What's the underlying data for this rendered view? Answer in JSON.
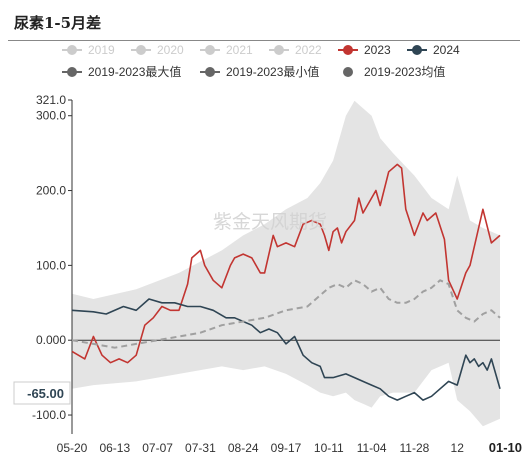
{
  "title": "尿素1-5月差",
  "watermark": "紫金天风期货",
  "cursor_label": "-65.00",
  "chart_data": {
    "type": "line",
    "x_categories": [
      "05-20",
      "06-13",
      "07-07",
      "07-31",
      "08-24",
      "09-17",
      "10-11",
      "11-04",
      "11-28",
      "12",
      "01-10"
    ],
    "ylim": [
      -120,
      321
    ],
    "y_ticks": [
      {
        "value": 321,
        "label": "321.0"
      },
      {
        "value": 300,
        "label": "300.0"
      },
      {
        "value": 200,
        "label": "200.0"
      },
      {
        "value": 100,
        "label": "100.0"
      },
      {
        "value": 0,
        "label": "0.000"
      },
      {
        "value": -100,
        "label": "-100.0"
      }
    ],
    "legend": [
      {
        "label": "2019",
        "color": "#cccccc",
        "marker": "circle-line",
        "inactive": true
      },
      {
        "label": "2020",
        "color": "#cccccc",
        "marker": "circle-line",
        "inactive": true
      },
      {
        "label": "2021",
        "color": "#cccccc",
        "marker": "circle-line",
        "inactive": true
      },
      {
        "label": "2022",
        "color": "#cccccc",
        "marker": "circle-line",
        "inactive": true
      },
      {
        "label": "2023",
        "color": "#c23531",
        "marker": "circle-line",
        "inactive": false
      },
      {
        "label": "2024",
        "color": "#2f4554",
        "marker": "circle-line",
        "inactive": false
      },
      {
        "label": "2019-2023最大值",
        "color": "#666666",
        "marker": "circle-line",
        "inactive": false
      },
      {
        "label": "2019-2023最小值",
        "color": "#666666",
        "marker": "circle-line",
        "inactive": false
      },
      {
        "label": "2019-2023均值",
        "color": "#666666",
        "marker": "circle",
        "inactive": false
      }
    ],
    "band": {
      "name": "2019-2023最大值/最小值",
      "color": "#e4e4e4",
      "x": [
        0,
        0.05,
        0.15,
        0.25,
        0.35,
        0.4,
        0.45,
        0.5,
        0.55,
        0.58,
        0.61,
        0.64,
        0.66,
        0.68,
        0.7,
        0.72,
        0.75,
        0.8,
        0.84,
        0.88,
        0.9,
        0.93,
        0.96,
        1.0
      ],
      "max": [
        62,
        55,
        68,
        90,
        120,
        140,
        155,
        175,
        190,
        210,
        240,
        300,
        320,
        310,
        300,
        270,
        250,
        220,
        190,
        175,
        220,
        160,
        150,
        140
      ],
      "min": [
        -65,
        -60,
        -55,
        -45,
        -35,
        -40,
        -35,
        -45,
        -60,
        -70,
        -75,
        -70,
        -80,
        -85,
        -90,
        -75,
        -70,
        -70,
        -40,
        -30,
        -80,
        -95,
        -115,
        -105
      ]
    },
    "series": [
      {
        "name": "2023",
        "color": "#c23531",
        "x": [
          0,
          0.03,
          0.05,
          0.07,
          0.09,
          0.11,
          0.13,
          0.15,
          0.17,
          0.19,
          0.21,
          0.23,
          0.25,
          0.27,
          0.28,
          0.3,
          0.31,
          0.33,
          0.35,
          0.37,
          0.38,
          0.4,
          0.42,
          0.44,
          0.45,
          0.47,
          0.48,
          0.5,
          0.52,
          0.54,
          0.56,
          0.58,
          0.59,
          0.6,
          0.61,
          0.62,
          0.63,
          0.64,
          0.66,
          0.67,
          0.68,
          0.7,
          0.71,
          0.72,
          0.74,
          0.76,
          0.77,
          0.78,
          0.8,
          0.82,
          0.83,
          0.85,
          0.87,
          0.88,
          0.9,
          0.92,
          0.93,
          0.95,
          0.96,
          0.98,
          1.0
        ],
        "values": [
          -15,
          -25,
          5,
          -20,
          -30,
          -25,
          -30,
          -20,
          20,
          30,
          45,
          40,
          40,
          75,
          110,
          120,
          100,
          80,
          70,
          100,
          110,
          115,
          110,
          90,
          90,
          140,
          125,
          130,
          125,
          155,
          160,
          155,
          140,
          120,
          145,
          150,
          130,
          145,
          160,
          190,
          170,
          190,
          200,
          180,
          225,
          235,
          230,
          175,
          140,
          170,
          160,
          170,
          135,
          80,
          55,
          90,
          100,
          150,
          175,
          130,
          140
        ]
      },
      {
        "name": "2024",
        "color": "#2f4554",
        "x": [
          0,
          0.05,
          0.08,
          0.12,
          0.15,
          0.18,
          0.21,
          0.24,
          0.27,
          0.3,
          0.33,
          0.36,
          0.38,
          0.4,
          0.42,
          0.44,
          0.46,
          0.48,
          0.5,
          0.52,
          0.54,
          0.56,
          0.58,
          0.59,
          0.61,
          0.64,
          0.66,
          0.68,
          0.7,
          0.72,
          0.74,
          0.76,
          0.78,
          0.8,
          0.82,
          0.84,
          0.86,
          0.88,
          0.9,
          0.91,
          0.92,
          0.93,
          0.94,
          0.95,
          0.96,
          0.97,
          0.98,
          1.0
        ],
        "values": [
          40,
          38,
          35,
          45,
          40,
          55,
          50,
          50,
          45,
          45,
          40,
          30,
          30,
          25,
          20,
          10,
          15,
          10,
          -5,
          5,
          -20,
          -30,
          -35,
          -50,
          -50,
          -45,
          -50,
          -55,
          -60,
          -65,
          -75,
          -80,
          -75,
          -70,
          -80,
          -75,
          -65,
          -55,
          -60,
          -40,
          -20,
          -30,
          -25,
          -35,
          -30,
          -40,
          -25,
          -65
        ]
      },
      {
        "name": "2019-2023均值",
        "color": "#a0a0a0",
        "dashed": true,
        "x": [
          0,
          0.05,
          0.1,
          0.15,
          0.2,
          0.25,
          0.3,
          0.35,
          0.4,
          0.45,
          0.5,
          0.55,
          0.58,
          0.6,
          0.62,
          0.64,
          0.66,
          0.68,
          0.7,
          0.72,
          0.74,
          0.76,
          0.78,
          0.8,
          0.82,
          0.84,
          0.86,
          0.88,
          0.9,
          0.92,
          0.94,
          0.96,
          0.98,
          1.0
        ],
        "values": [
          0,
          -5,
          -10,
          -5,
          0,
          5,
          10,
          20,
          25,
          30,
          40,
          45,
          60,
          70,
          75,
          70,
          80,
          75,
          65,
          70,
          55,
          50,
          50,
          55,
          65,
          70,
          80,
          75,
          40,
          30,
          25,
          35,
          40,
          30
        ]
      }
    ]
  }
}
